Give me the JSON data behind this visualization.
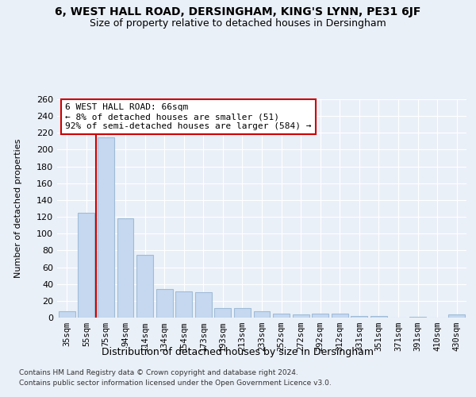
{
  "title1": "6, WEST HALL ROAD, DERSINGHAM, KING'S LYNN, PE31 6JF",
  "title2": "Size of property relative to detached houses in Dersingham",
  "xlabel": "Distribution of detached houses by size in Dersingham",
  "ylabel": "Number of detached properties",
  "categories": [
    "35sqm",
    "55sqm",
    "75sqm",
    "94sqm",
    "114sqm",
    "134sqm",
    "154sqm",
    "173sqm",
    "193sqm",
    "213sqm",
    "233sqm",
    "252sqm",
    "272sqm",
    "292sqm",
    "312sqm",
    "331sqm",
    "351sqm",
    "371sqm",
    "391sqm",
    "410sqm",
    "430sqm"
  ],
  "values": [
    8,
    125,
    215,
    118,
    75,
    34,
    31,
    30,
    11,
    11,
    8,
    5,
    4,
    5,
    5,
    2,
    2,
    0,
    1,
    0,
    4
  ],
  "bar_color": "#c5d8f0",
  "bar_edge_color": "#a0bcd8",
  "annotation_text": "6 WEST HALL ROAD: 66sqm\n← 8% of detached houses are smaller (51)\n92% of semi-detached houses are larger (584) →",
  "annotation_box_color": "#ffffff",
  "annotation_box_edge": "#cc0000",
  "vline_color": "#cc0000",
  "vline_x": 1.5,
  "footer1": "Contains HM Land Registry data © Crown copyright and database right 2024.",
  "footer2": "Contains public sector information licensed under the Open Government Licence v3.0.",
  "bg_color": "#eaf0f8",
  "plot_bg_color": "#eaf0f8",
  "title1_fontsize": 10,
  "title2_fontsize": 9,
  "ylim": [
    0,
    260
  ],
  "yticks": [
    0,
    20,
    40,
    60,
    80,
    100,
    120,
    140,
    160,
    180,
    200,
    220,
    240,
    260
  ]
}
